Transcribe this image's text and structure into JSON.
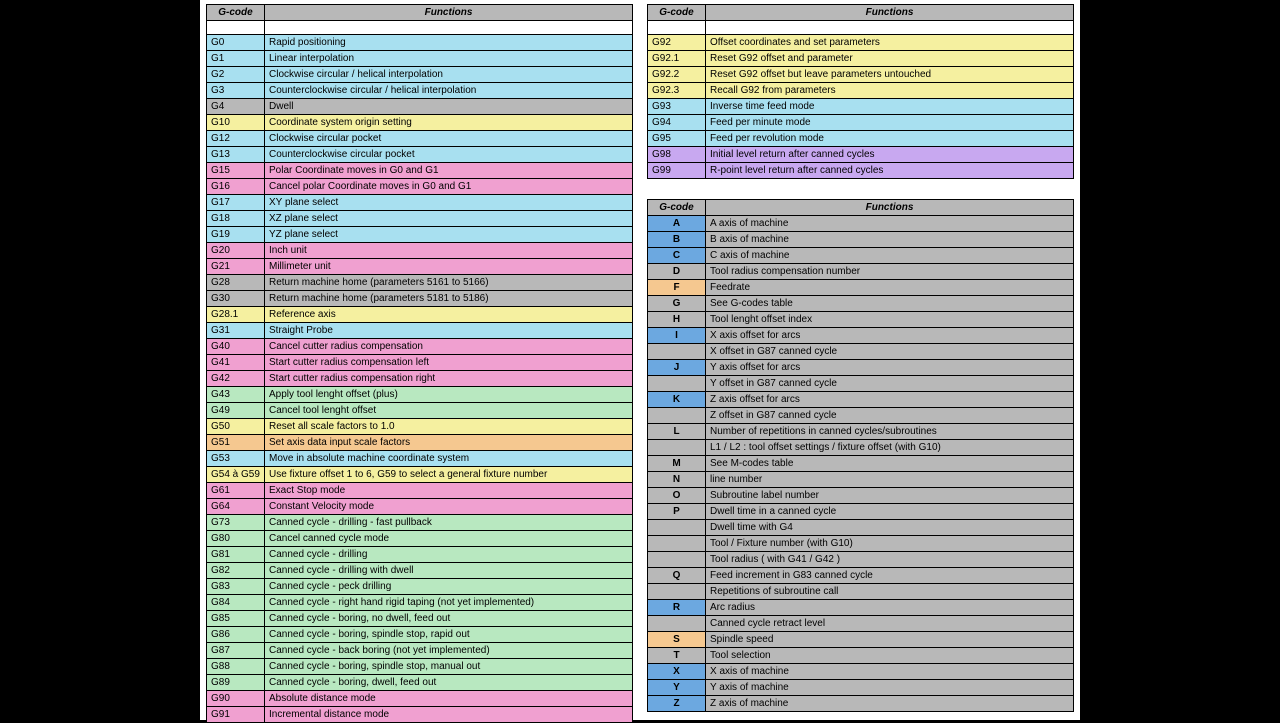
{
  "colors": {
    "header": "#b8b8b8",
    "cyan": "#a8e0f0",
    "yellow": "#f5f0a0",
    "gray": "#b8b8b8",
    "magenta": "#f0a0d0",
    "green": "#b8e8c0",
    "orange": "#f5c890",
    "purple": "#c8a8f0",
    "blue": "#6ca8e0",
    "white": "#ffffff"
  },
  "headers": {
    "gcode": "G-code",
    "functions": "Functions"
  },
  "left_table": [
    {
      "code": "G0",
      "fn": "Rapid positioning",
      "c": "cyan"
    },
    {
      "code": "G1",
      "fn": "Linear interpolation",
      "c": "cyan"
    },
    {
      "code": "G2",
      "fn": "Clockwise circular / helical interpolation",
      "c": "cyan"
    },
    {
      "code": "G3",
      "fn": "Counterclockwise circular / helical interpolation",
      "c": "cyan"
    },
    {
      "code": "G4",
      "fn": "Dwell",
      "c": "gray"
    },
    {
      "code": "G10",
      "fn": "Coordinate system origin setting",
      "c": "yellow"
    },
    {
      "code": "G12",
      "fn": "Clockwise circular pocket",
      "c": "cyan"
    },
    {
      "code": "G13",
      "fn": "Counterclockwise circular pocket",
      "c": "cyan"
    },
    {
      "code": "G15",
      "fn": "Polar Coordinate moves in G0 and G1",
      "c": "magenta"
    },
    {
      "code": "G16",
      "fn": "Cancel polar Coordinate moves in G0 and G1",
      "c": "magenta"
    },
    {
      "code": "G17",
      "fn": "XY plane select",
      "c": "cyan"
    },
    {
      "code": "G18",
      "fn": "XZ plane select",
      "c": "cyan"
    },
    {
      "code": "G19",
      "fn": "YZ plane select",
      "c": "cyan"
    },
    {
      "code": "G20",
      "fn": "Inch unit",
      "c": "magenta"
    },
    {
      "code": "G21",
      "fn": "Millimeter unit",
      "c": "magenta"
    },
    {
      "code": "G28",
      "fn": "Return machine home (parameters 5161 to 5166)",
      "c": "gray"
    },
    {
      "code": "G30",
      "fn": "Return machine home (parameters 5181 to 5186)",
      "c": "gray"
    },
    {
      "code": "G28.1",
      "fn": "Reference axis",
      "c": "yellow"
    },
    {
      "code": "G31",
      "fn": "Straight Probe",
      "c": "cyan"
    },
    {
      "code": "G40",
      "fn": "Cancel cutter radius compensation",
      "c": "magenta"
    },
    {
      "code": "G41",
      "fn": "Start cutter radius compensation left",
      "c": "magenta"
    },
    {
      "code": "G42",
      "fn": "Start cutter radius compensation right",
      "c": "magenta"
    },
    {
      "code": "G43",
      "fn": "Apply tool lenght offset (plus)",
      "c": "green"
    },
    {
      "code": "G49",
      "fn": "Cancel tool lenght offset",
      "c": "green"
    },
    {
      "code": "G50",
      "fn": "Reset all scale factors to 1.0",
      "c": "yellow"
    },
    {
      "code": "G51",
      "fn": "Set axis data input scale factors",
      "c": "orange"
    },
    {
      "code": "G53",
      "fn": "Move in absolute machine coordinate system",
      "c": "cyan"
    },
    {
      "code": "G54 à G59",
      "fn": "Use fixture offset 1 to 6, G59 to select a general fixture number",
      "c": "yellow"
    },
    {
      "code": "G61",
      "fn": "Exact Stop mode",
      "c": "magenta"
    },
    {
      "code": "G64",
      "fn": "Constant Velocity mode",
      "c": "magenta"
    },
    {
      "code": "G73",
      "fn": "Canned cycle - drilling - fast pullback",
      "c": "green"
    },
    {
      "code": "G80",
      "fn": "Cancel canned cycle mode",
      "c": "green"
    },
    {
      "code": "G81",
      "fn": "Canned cycle - drilling",
      "c": "green"
    },
    {
      "code": "G82",
      "fn": "Canned cycle - drilling with dwell",
      "c": "green"
    },
    {
      "code": "G83",
      "fn": "Canned cycle - peck drilling",
      "c": "green"
    },
    {
      "code": "G84",
      "fn": "Canned cycle - right hand rigid taping (not yet implemented)",
      "c": "green"
    },
    {
      "code": "G85",
      "fn": "Canned cycle - boring, no dwell, feed out",
      "c": "green"
    },
    {
      "code": "G86",
      "fn": "Canned cycle - boring, spindle stop, rapid out",
      "c": "green"
    },
    {
      "code": "G87",
      "fn": "Canned cycle - back boring (not yet implemented)",
      "c": "green"
    },
    {
      "code": "G88",
      "fn": "Canned cycle - boring, spindle stop, manual out",
      "c": "green"
    },
    {
      "code": "G89",
      "fn": "Canned cycle - boring, dwell, feed out",
      "c": "green"
    },
    {
      "code": "G90",
      "fn": "Absolute distance mode",
      "c": "magenta"
    },
    {
      "code": "G91",
      "fn": "Incremental distance mode",
      "c": "magenta"
    }
  ],
  "right_top": [
    {
      "code": "G92",
      "fn": "Offset coordinates and set parameters",
      "c": "yellow"
    },
    {
      "code": "G92.1",
      "fn": "Reset G92 offset and parameter",
      "c": "yellow"
    },
    {
      "code": "G92.2",
      "fn": "Reset G92 offset but leave parameters untouched",
      "c": "yellow"
    },
    {
      "code": "G92.3",
      "fn": "Recall G92 from parameters",
      "c": "yellow"
    },
    {
      "code": "G93",
      "fn": "Inverse time feed mode",
      "c": "cyan"
    },
    {
      "code": "G94",
      "fn": "Feed per minute mode",
      "c": "cyan"
    },
    {
      "code": "G95",
      "fn": "Feed per revolution mode",
      "c": "cyan"
    },
    {
      "code": "G98",
      "fn": "Initial level return after canned cycles",
      "c": "purple"
    },
    {
      "code": "G99",
      "fn": "R-point level return after canned cycles",
      "c": "purple"
    }
  ],
  "right_bottom": [
    {
      "code": "A",
      "fn": "A axis of machine",
      "c": "blue"
    },
    {
      "code": "B",
      "fn": "B axis of machine",
      "c": "blue"
    },
    {
      "code": "C",
      "fn": "C axis of machine",
      "c": "blue"
    },
    {
      "code": "D",
      "fn": "Tool radius compensation number",
      "c": "gray"
    },
    {
      "code": "F",
      "fn": "Feedrate",
      "c": "orange"
    },
    {
      "code": "G",
      "fn": "See G-codes table",
      "c": "gray"
    },
    {
      "code": "H",
      "fn": "Tool lenght offset index",
      "c": "gray"
    },
    {
      "code": "I",
      "fn": "X axis offset for arcs",
      "c": "blue"
    },
    {
      "code": "",
      "fn": "X offset in G87 canned cycle",
      "c": "gray"
    },
    {
      "code": "J",
      "fn": "Y axis offset for arcs",
      "c": "blue"
    },
    {
      "code": "",
      "fn": "Y offset in G87 canned cycle",
      "c": "gray"
    },
    {
      "code": "K",
      "fn": "Z axis offset for arcs",
      "c": "blue"
    },
    {
      "code": "",
      "fn": "Z offset in G87 canned cycle",
      "c": "gray"
    },
    {
      "code": "L",
      "fn": "Number of repetitions in canned cycles/subroutines",
      "c": "gray"
    },
    {
      "code": "",
      "fn": "L1 / L2 : tool offset settings / fixture offset (with G10)",
      "c": "gray"
    },
    {
      "code": "M",
      "fn": "See M-codes table",
      "c": "gray"
    },
    {
      "code": "N",
      "fn": "line number",
      "c": "gray"
    },
    {
      "code": "O",
      "fn": "Subroutine label number",
      "c": "gray"
    },
    {
      "code": "P",
      "fn": "Dwell time in a canned cycle",
      "c": "gray"
    },
    {
      "code": "",
      "fn": "Dwell time with G4",
      "c": "gray"
    },
    {
      "code": "",
      "fn": "Tool / Fixture number (with G10)",
      "c": "gray"
    },
    {
      "code": "",
      "fn": "Tool radius ( with G41 / G42 )",
      "c": "gray"
    },
    {
      "code": "Q",
      "fn": "Feed increment in G83 canned cycle",
      "c": "gray"
    },
    {
      "code": "",
      "fn": "Repetitions of subroutine call",
      "c": "gray"
    },
    {
      "code": "R",
      "fn": "Arc radius",
      "c": "blue"
    },
    {
      "code": "",
      "fn": "Canned cycle retract level",
      "c": "gray"
    },
    {
      "code": "S",
      "fn": "Spindle speed",
      "c": "orange"
    },
    {
      "code": "T",
      "fn": "Tool selection",
      "c": "gray"
    },
    {
      "code": "X",
      "fn": "X axis of machine",
      "c": "blue"
    },
    {
      "code": "Y",
      "fn": "Y axis of machine",
      "c": "blue"
    },
    {
      "code": "Z",
      "fn": "Z axis of machine",
      "c": "blue"
    }
  ]
}
